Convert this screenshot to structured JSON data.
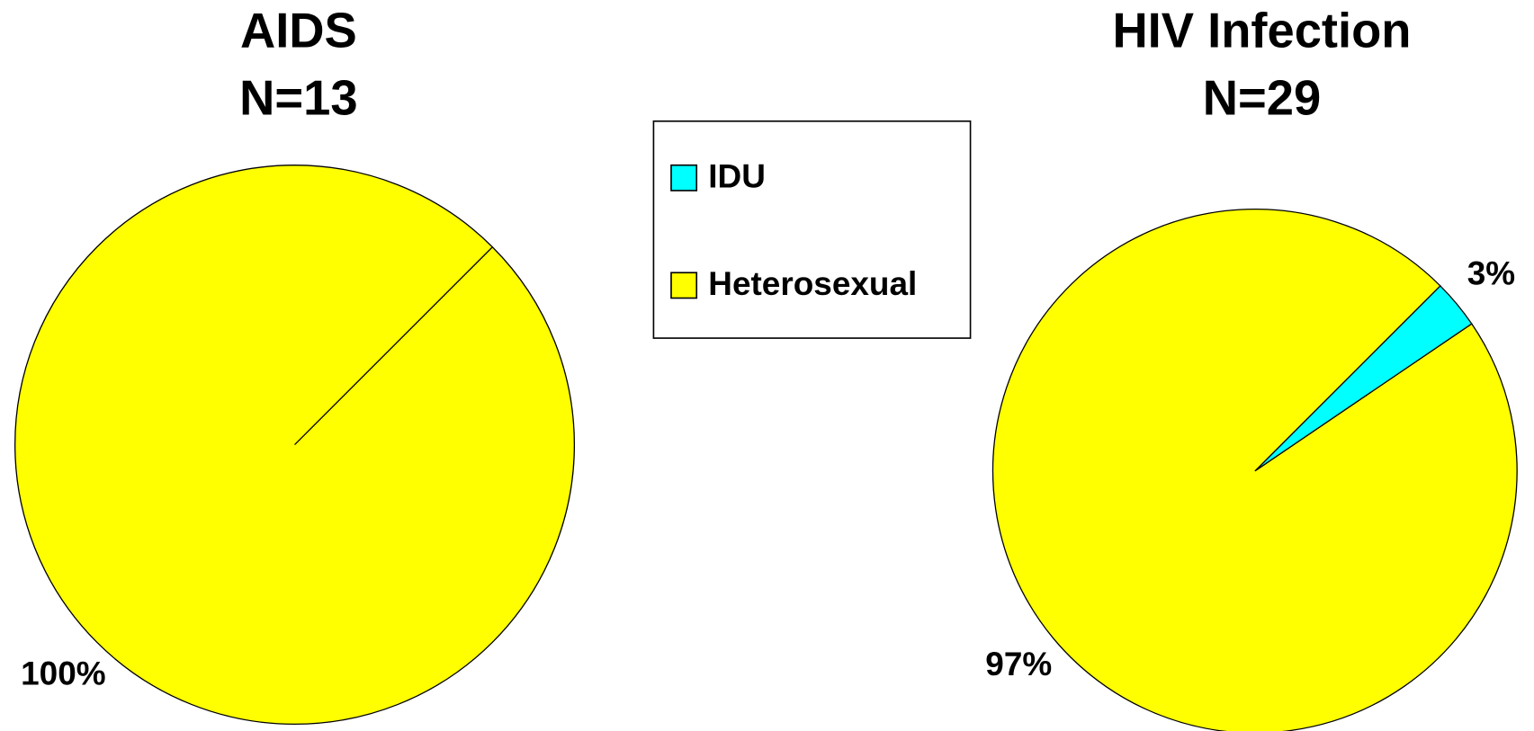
{
  "chart_data": [
    {
      "type": "pie",
      "title": "AIDS",
      "subtitle": "N=13",
      "categories": [
        "IDU",
        "Heterosexual"
      ],
      "values": [
        0,
        100
      ],
      "value_labels": [
        null,
        "100%"
      ],
      "colors": [
        "#00ffff",
        "#ffff00"
      ]
    },
    {
      "type": "pie",
      "title": "HIV Infection",
      "subtitle": "N=29",
      "categories": [
        "IDU",
        "Heterosexual"
      ],
      "values": [
        3,
        97
      ],
      "value_labels": [
        "3%",
        "97%"
      ],
      "colors": [
        "#00ffff",
        "#ffff00"
      ]
    }
  ]
}
